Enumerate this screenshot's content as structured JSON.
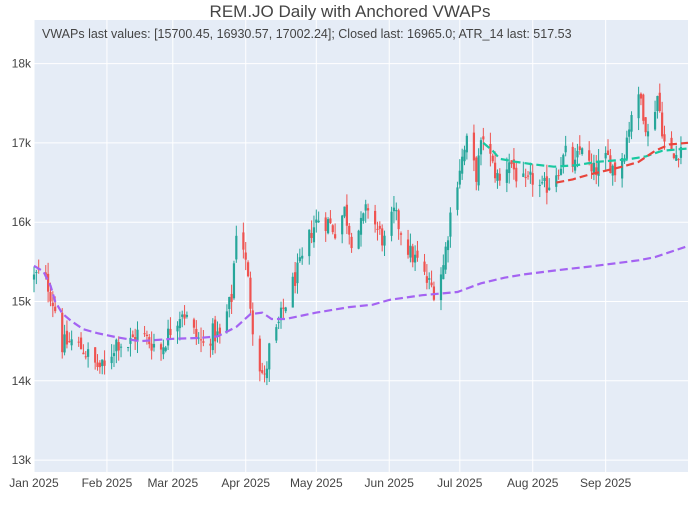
{
  "colors": {
    "plot_bg": "#e5ecf6",
    "grid": "#ffffff",
    "up": "#26a69a",
    "down": "#ef5350",
    "vwap_teal": "#19c8a0",
    "vwap_red": "#e8453c",
    "vwap_purple": "#a463f2",
    "text": "#444444"
  },
  "chart_data": {
    "type": "candlestick",
    "title": "REM.JO Daily with Anchored VWAPs",
    "annotation": "VWAPs last values: [15700.45, 16930.57, 17002.24]; Closed last: 16965.0; ATR_14 last: 517.53",
    "ylim": [
      12850,
      18550
    ],
    "y_ticks": [
      {
        "value": 13000,
        "label": "13k"
      },
      {
        "value": 14000,
        "label": "14k"
      },
      {
        "value": 15000,
        "label": "15k"
      },
      {
        "value": 16000,
        "label": "16k"
      },
      {
        "value": 17000,
        "label": "17k"
      },
      {
        "value": 18000,
        "label": "18k"
      }
    ],
    "x_range": [
      "2025-01-01",
      "2025-10-06"
    ],
    "x_ticks": [
      {
        "date": "2025-01-01",
        "label": "Jan 2025"
      },
      {
        "date": "2025-02-01",
        "label": "Feb 2025"
      },
      {
        "date": "2025-03-01",
        "label": "Mar 2025"
      },
      {
        "date": "2025-04-01",
        "label": "Apr 2025"
      },
      {
        "date": "2025-05-01",
        "label": "May 2025"
      },
      {
        "date": "2025-06-01",
        "label": "Jun 2025"
      },
      {
        "date": "2025-07-01",
        "label": "Jul 2025"
      },
      {
        "date": "2025-08-01",
        "label": "Aug 2025"
      },
      {
        "date": "2025-09-01",
        "label": "Sep 2025"
      }
    ],
    "candle_anchors": [
      [
        "2025-01-01",
        15300
      ],
      [
        "2025-01-03",
        15350
      ],
      [
        "2025-01-07",
        15200
      ],
      [
        "2025-01-10",
        14900
      ],
      [
        "2025-01-13",
        14450
      ],
      [
        "2025-01-17",
        14500
      ],
      [
        "2025-01-22",
        14400
      ],
      [
        "2025-01-27",
        14200
      ],
      [
        "2025-01-31",
        14150
      ],
      [
        "2025-02-05",
        14500
      ],
      [
        "2025-02-10",
        14450
      ],
      [
        "2025-02-14",
        14600
      ],
      [
        "2025-02-19",
        14500
      ],
      [
        "2025-02-24",
        14400
      ],
      [
        "2025-02-28",
        14650
      ],
      [
        "2025-03-05",
        14900
      ],
      [
        "2025-03-10",
        14600
      ],
      [
        "2025-03-14",
        14450
      ],
      [
        "2025-03-18",
        14600
      ],
      [
        "2025-03-21",
        14550
      ],
      [
        "2025-03-26",
        15050
      ],
      [
        "2025-03-28",
        15900
      ],
      [
        "2025-03-31",
        15700
      ],
      [
        "2025-04-02",
        15250
      ],
      [
        "2025-04-04",
        14700
      ],
      [
        "2025-04-07",
        14200
      ],
      [
        "2025-04-09",
        14000
      ],
      [
        "2025-04-11",
        14400
      ],
      [
        "2025-04-14",
        14600
      ],
      [
        "2025-04-17",
        14900
      ],
      [
        "2025-04-22",
        15300
      ],
      [
        "2025-04-25",
        15500
      ],
      [
        "2025-04-29",
        15900
      ],
      [
        "2025-05-02",
        16050
      ],
      [
        "2025-05-06",
        16000
      ],
      [
        "2025-05-09",
        15900
      ],
      [
        "2025-05-13",
        16150
      ],
      [
        "2025-05-16",
        15800
      ],
      [
        "2025-05-20",
        15950
      ],
      [
        "2025-05-23",
        16200
      ],
      [
        "2025-05-27",
        15900
      ],
      [
        "2025-05-30",
        15750
      ],
      [
        "2025-06-03",
        16100
      ],
      [
        "2025-06-06",
        15900
      ],
      [
        "2025-06-10",
        15600
      ],
      [
        "2025-06-13",
        15500
      ],
      [
        "2025-06-17",
        15250
      ],
      [
        "2025-06-20",
        15150
      ],
      [
        "2025-06-24",
        15450
      ],
      [
        "2025-06-27",
        16100
      ],
      [
        "2025-07-01",
        16700
      ],
      [
        "2025-07-04",
        17000
      ],
      [
        "2025-07-08",
        16600
      ],
      [
        "2025-07-11",
        17100
      ],
      [
        "2025-07-15",
        16700
      ],
      [
        "2025-07-18",
        16500
      ],
      [
        "2025-07-22",
        16800
      ],
      [
        "2025-07-25",
        16600
      ],
      [
        "2025-07-29",
        16450
      ],
      [
        "2025-08-01",
        16550
      ],
      [
        "2025-08-05",
        16400
      ],
      [
        "2025-08-08",
        16500
      ],
      [
        "2025-08-12",
        16700
      ],
      [
        "2025-08-15",
        16850
      ],
      [
        "2025-08-19",
        16700
      ],
      [
        "2025-08-22",
        17000
      ],
      [
        "2025-08-26",
        16600
      ],
      [
        "2025-08-29",
        16700
      ],
      [
        "2025-09-02",
        16800
      ],
      [
        "2025-09-05",
        16650
      ],
      [
        "2025-09-09",
        16900
      ],
      [
        "2025-09-12",
        17400
      ],
      [
        "2025-09-16",
        17550
      ],
      [
        "2025-09-19",
        17100
      ],
      [
        "2025-09-23",
        17600
      ],
      [
        "2025-09-26",
        17000
      ],
      [
        "2025-09-30",
        16800
      ],
      [
        "2025-10-03",
        16965
      ]
    ],
    "vwap_series": [
      {
        "color_key": "vwap_purple",
        "points": [
          [
            "2025-01-01",
            15450
          ],
          [
            "2025-01-05",
            15380
          ],
          [
            "2025-01-08",
            15200
          ],
          [
            "2025-01-10",
            15000
          ],
          [
            "2025-01-13",
            14850
          ],
          [
            "2025-01-17",
            14750
          ],
          [
            "2025-01-22",
            14650
          ],
          [
            "2025-01-28",
            14600
          ],
          [
            "2025-02-05",
            14550
          ],
          [
            "2025-02-15",
            14500
          ],
          [
            "2025-03-01",
            14530
          ],
          [
            "2025-03-12",
            14540
          ],
          [
            "2025-03-20",
            14560
          ],
          [
            "2025-03-28",
            14680
          ],
          [
            "2025-04-03",
            14840
          ],
          [
            "2025-04-08",
            14860
          ],
          [
            "2025-04-12",
            14780
          ],
          [
            "2025-04-18",
            14780
          ],
          [
            "2025-05-01",
            14860
          ],
          [
            "2025-05-15",
            14930
          ],
          [
            "2025-05-25",
            14960
          ],
          [
            "2025-06-01",
            15020
          ],
          [
            "2025-06-15",
            15080
          ],
          [
            "2025-06-30",
            15120
          ],
          [
            "2025-07-10",
            15230
          ],
          [
            "2025-07-20",
            15300
          ],
          [
            "2025-07-28",
            15340
          ],
          [
            "2025-08-10",
            15390
          ],
          [
            "2025-08-25",
            15440
          ],
          [
            "2025-09-05",
            15480
          ],
          [
            "2025-09-15",
            15520
          ],
          [
            "2025-09-22",
            15560
          ],
          [
            "2025-10-06",
            15700
          ]
        ]
      },
      {
        "color_key": "vwap_teal",
        "points": [
          [
            "2025-07-11",
            17000
          ],
          [
            "2025-07-15",
            16900
          ],
          [
            "2025-07-18",
            16800
          ],
          [
            "2025-07-25",
            16760
          ],
          [
            "2025-08-01",
            16730
          ],
          [
            "2025-08-10",
            16700
          ],
          [
            "2025-08-20",
            16720
          ],
          [
            "2025-08-28",
            16760
          ],
          [
            "2025-09-05",
            16780
          ],
          [
            "2025-09-12",
            16800
          ],
          [
            "2025-09-18",
            16830
          ],
          [
            "2025-09-25",
            16900
          ],
          [
            "2025-10-06",
            16930
          ]
        ]
      },
      {
        "color_key": "vwap_red",
        "points": [
          [
            "2025-08-11",
            16500
          ],
          [
            "2025-08-18",
            16540
          ],
          [
            "2025-08-25",
            16600
          ],
          [
            "2025-09-01",
            16650
          ],
          [
            "2025-09-08",
            16700
          ],
          [
            "2025-09-15",
            16760
          ],
          [
            "2025-09-22",
            16900
          ],
          [
            "2025-09-28",
            16980
          ],
          [
            "2025-10-06",
            17002
          ]
        ]
      }
    ]
  }
}
